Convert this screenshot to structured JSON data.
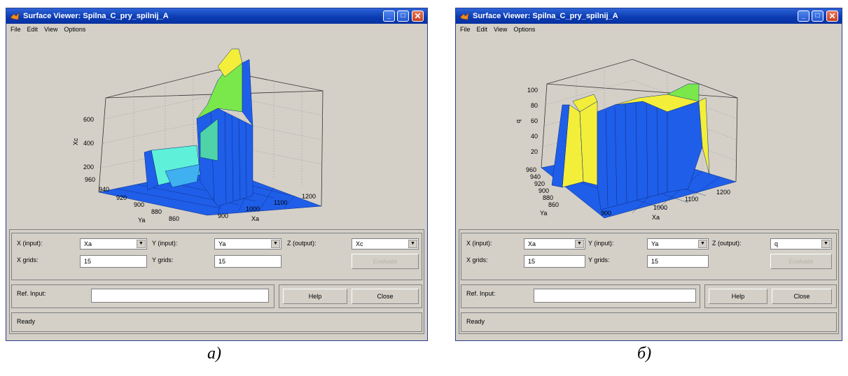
{
  "windows": [
    {
      "title": "Surface Viewer: Spilna_C_pry_spilnij_A",
      "menu": [
        "File",
        "Edit",
        "View",
        "Options"
      ],
      "axes": {
        "z_label": "Xc",
        "z_ticks": [
          "200",
          "400",
          "600"
        ],
        "y_label": "Ya",
        "y_ticks": [
          "860",
          "880",
          "900",
          "920",
          "940",
          "960"
        ],
        "x_label": "Xa",
        "x_ticks": [
          "900",
          "1000",
          "1100",
          "1200"
        ]
      },
      "controls": {
        "x_input_label": "X (input):",
        "x_input_value": "Xa",
        "y_input_label": "Y (input):",
        "y_input_value": "Ya",
        "z_output_label": "Z (output):",
        "z_output_value": "Xc",
        "x_grids_label": "X grids:",
        "x_grids_value": "15",
        "y_grids_label": "Y grids:",
        "y_grids_value": "15",
        "evaluate_label": "Evaluate",
        "ref_input_label": "Ref. Input:",
        "ref_input_value": "",
        "help_label": "Help",
        "close_label": "Close",
        "status": "Ready"
      }
    },
    {
      "title": "Surface Viewer: Spilna_C_pry_spilnij_A",
      "menu": [
        "File",
        "Edit",
        "View",
        "Options"
      ],
      "axes": {
        "z_label": "q",
        "z_ticks": [
          "20",
          "40",
          "60",
          "80",
          "100"
        ],
        "y_label": "Ya",
        "y_ticks": [
          "860",
          "880",
          "900",
          "920",
          "940",
          "960"
        ],
        "x_label": "Xa",
        "x_ticks": [
          "900",
          "1000",
          "1100",
          "1200"
        ]
      },
      "controls": {
        "x_input_label": "X (input):",
        "x_input_value": "Xa",
        "y_input_label": "Y (input):",
        "y_input_value": "Ya",
        "z_output_label": "Z (output):",
        "z_output_value": "q",
        "x_grids_label": "X grids:",
        "x_grids_value": "15",
        "y_grids_label": "Y grids:",
        "y_grids_value": "15",
        "evaluate_label": "Evaluate",
        "ref_input_label": "Ref. Input:",
        "ref_input_value": "",
        "help_label": "Help",
        "close_label": "Close",
        "status": "Ready"
      }
    }
  ],
  "captions": [
    "а)",
    "б)"
  ],
  "colors": {
    "surface_low": "#1f5ee8",
    "surface_mid": "#5ef0d8",
    "surface_high": "#f2ee3a",
    "titlebar": "#0a3ab0",
    "face": "#d4d0c8"
  },
  "icons": {
    "app": "matlab-logo-icon",
    "minimize": "minimize-icon",
    "maximize": "maximize-icon",
    "close": "close-icon",
    "dropdown": "chevron-down-icon"
  }
}
